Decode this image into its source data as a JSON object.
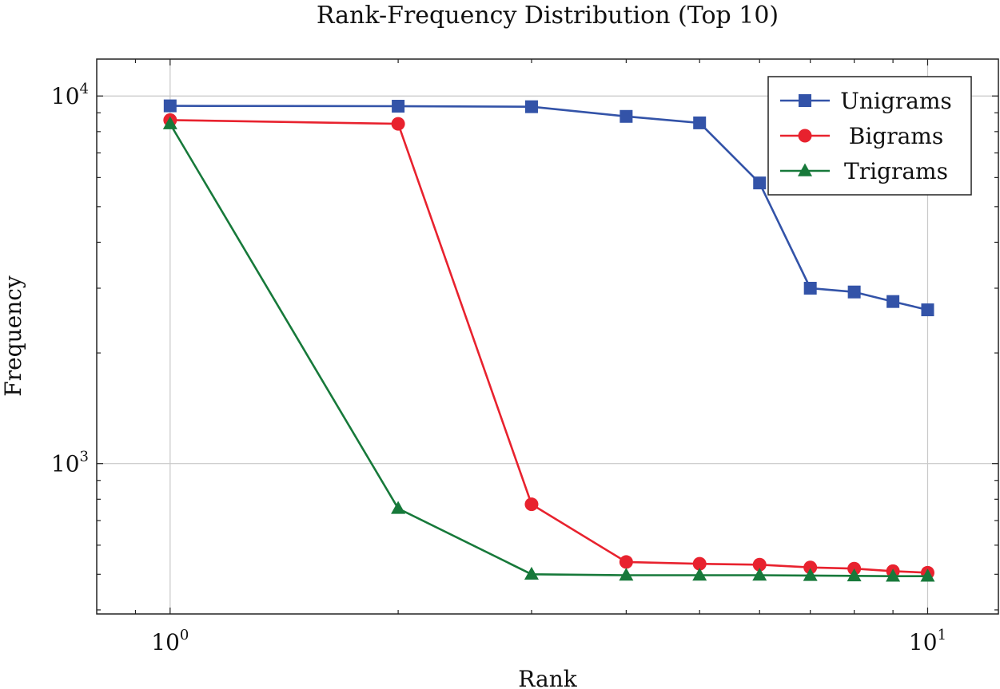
{
  "chart_data": {
    "type": "line",
    "title": "Rank-Frequency Distribution (Top 10)",
    "xlabel": "Rank",
    "ylabel": "Frequency",
    "xscale": "log",
    "yscale": "log",
    "xlim": [
      0.8,
      12.4
    ],
    "ylim": [
      390,
      12600
    ],
    "grid": true,
    "legend_position": "top-right",
    "x_ticks": [
      {
        "value": 1,
        "base": "10",
        "exp": "0"
      },
      {
        "value": 10,
        "base": "10",
        "exp": "1"
      }
    ],
    "y_ticks": [
      {
        "value": 1000,
        "base": "10",
        "exp": "3"
      },
      {
        "value": 10000,
        "base": "10",
        "exp": "4"
      }
    ],
    "x": [
      1,
      2,
      3,
      4,
      5,
      6,
      7,
      8,
      9,
      10
    ],
    "series": [
      {
        "name": "Unigrams",
        "color": "#3353a8",
        "marker": "square",
        "values": [
          9400,
          9380,
          9350,
          8800,
          8450,
          5800,
          3000,
          2930,
          2760,
          2620
        ]
      },
      {
        "name": "Bigrams",
        "color": "#e8222e",
        "marker": "circle",
        "values": [
          8600,
          8400,
          775,
          540,
          534,
          531,
          522,
          518,
          510,
          505
        ]
      },
      {
        "name": "Trigrams",
        "color": "#17793a",
        "marker": "triangle",
        "values": [
          8400,
          755,
          500,
          497,
          497,
          497,
          496,
          495,
          494,
          494
        ]
      }
    ]
  }
}
